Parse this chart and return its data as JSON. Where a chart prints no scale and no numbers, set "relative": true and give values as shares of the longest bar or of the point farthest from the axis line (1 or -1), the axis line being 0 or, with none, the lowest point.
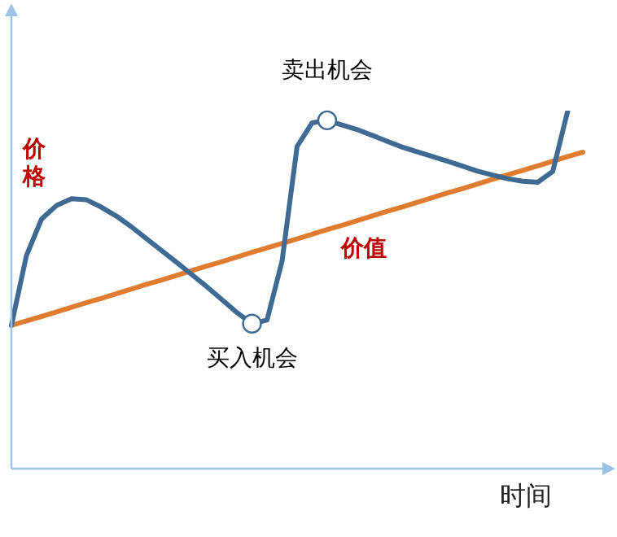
{
  "chart_data": {
    "type": "line",
    "relative": true,
    "xlabel": "时间",
    "categories": [
      null,
      null,
      null,
      null,
      null,
      null,
      null,
      null,
      null,
      null,
      null,
      null,
      null,
      null,
      null,
      null,
      null,
      null,
      null,
      null,
      null,
      null,
      null,
      null,
      null,
      null,
      null,
      null,
      null,
      null,
      null,
      null,
      null,
      null,
      null,
      null,
      null,
      null,
      null
    ],
    "legend": false,
    "marker": "none",
    "series": [
      {
        "name": "价格",
        "color": "#3e6a94",
        "values": [
          0.4,
          0.595,
          0.697,
          0.735,
          0.754,
          0.751,
          0.73,
          0.705,
          0.675,
          0.642,
          0.609,
          0.576,
          0.542,
          0.508,
          0.472,
          0.436,
          0.405,
          0.415,
          0.58,
          0.9,
          0.966,
          0.973,
          0.96,
          0.947,
          0.931,
          0.914,
          0.898,
          0.885,
          0.872,
          0.859,
          0.845,
          0.831,
          0.82,
          0.81,
          0.803,
          0.8,
          0.83,
          1,
          null
        ]
      },
      {
        "name": "价值",
        "color": "#e07b2f",
        "values": [
          0.4,
          0.413,
          0.425,
          0.438,
          0.451,
          0.464,
          0.476,
          0.489,
          0.502,
          0.515,
          0.527,
          0.54,
          0.553,
          0.566,
          0.578,
          0.591,
          0.604,
          0.617,
          0.629,
          0.642,
          0.655,
          0.668,
          0.68,
          0.693,
          0.706,
          0.719,
          0.731,
          0.744,
          0.757,
          0.77,
          0.782,
          0.795,
          0.808,
          0.821,
          0.833,
          0.846,
          0.859,
          0.872,
          0.884
        ]
      }
    ],
    "annotations": [
      {
        "text": "卖出机会",
        "y": 0.973
      },
      {
        "text": "买入机会",
        "y": 0.405
      }
    ]
  }
}
